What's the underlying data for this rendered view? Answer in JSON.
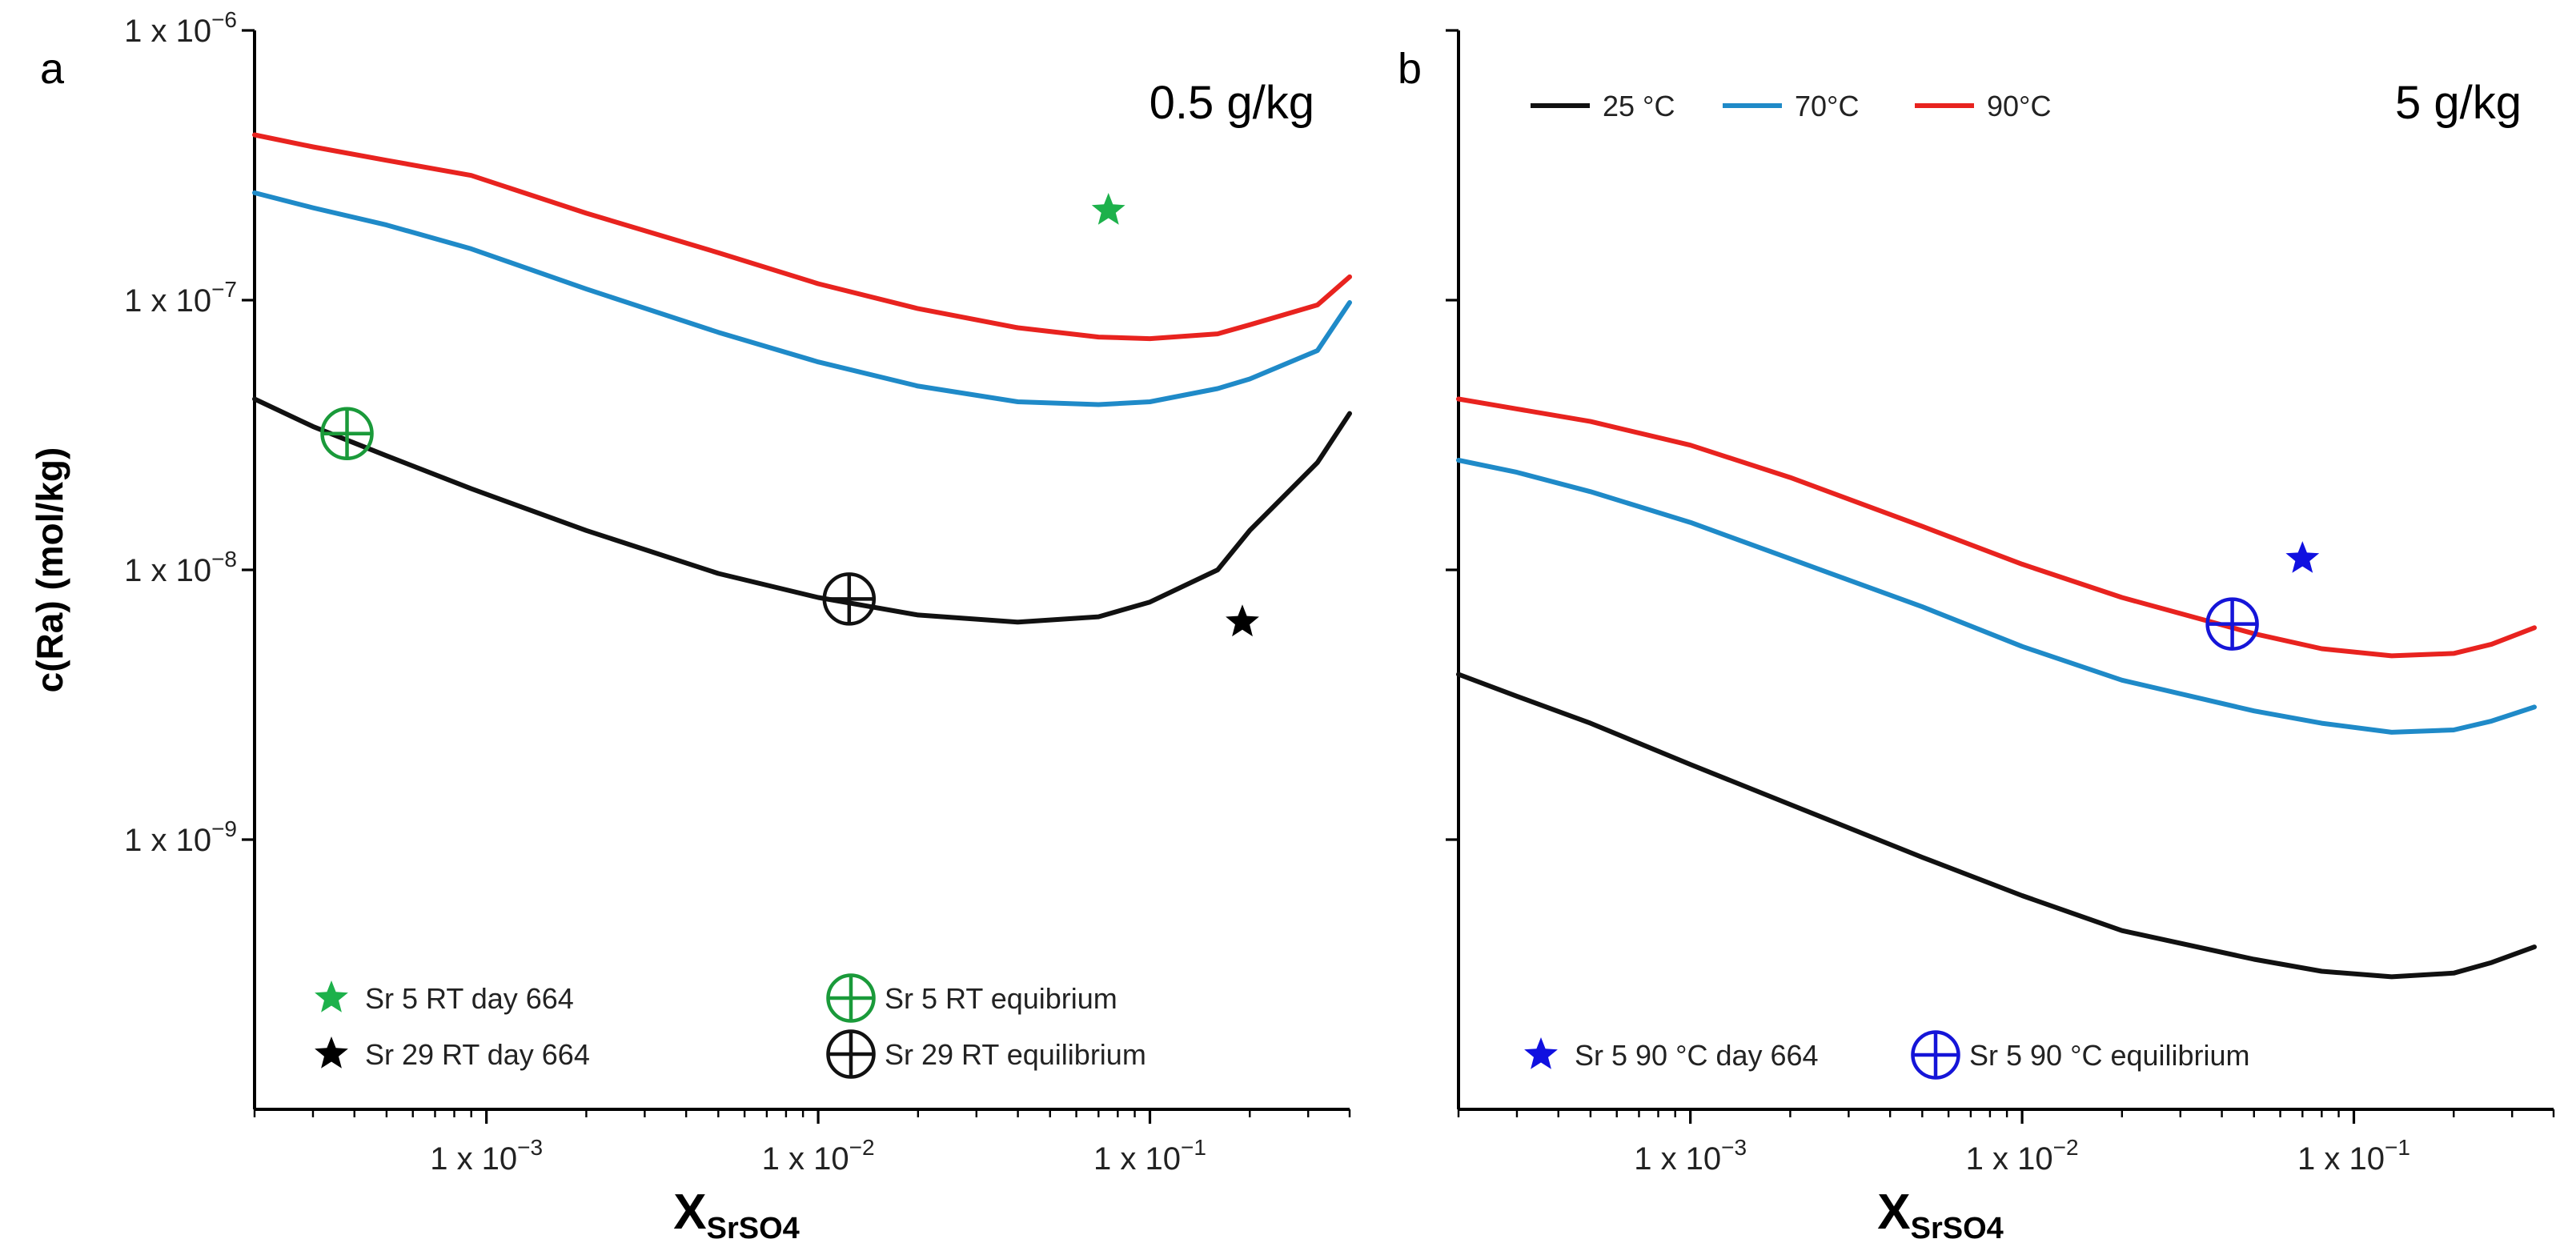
{
  "chart_data": [
    {
      "panel": "a",
      "type": "line",
      "annotation": "0.5 g/kg",
      "xscale": "log",
      "yscale": "log",
      "xlim": [
        0.0002,
        0.4
      ],
      "ylim": [
        1e-10,
        1e-06
      ],
      "xlabel_main": "X",
      "xlabel_sub": "SrSO4",
      "ylabel": "c(Ra) (mol/kg)",
      "x_ticks": [
        {
          "value": 0.001,
          "base": "1 x 10",
          "exp": "−3"
        },
        {
          "value": 0.01,
          "base": "1 x 10",
          "exp": "−2"
        },
        {
          "value": 0.1,
          "base": "1 x 10",
          "exp": "−1"
        }
      ],
      "y_ticks": [
        {
          "value": 1e-06,
          "base": "1 x 10",
          "exp": "−6"
        },
        {
          "value": 1e-07,
          "base": "1 x 10",
          "exp": "−7"
        },
        {
          "value": 1e-08,
          "base": "1 x 10",
          "exp": "−8"
        },
        {
          "value": 1e-09,
          "base": "1 x 10",
          "exp": "−9"
        }
      ],
      "series": [
        {
          "name": "90°C",
          "color": "#e8231f",
          "x": [
            0.0002,
            0.0003,
            0.0005,
            0.0009,
            0.002,
            0.005,
            0.01,
            0.02,
            0.04,
            0.07,
            0.1,
            0.16,
            0.2,
            0.32,
            0.4
          ],
          "y": [
            4.1e-07,
            3.7e-07,
            3.3e-07,
            2.9e-07,
            2.1e-07,
            1.5e-07,
            1.15e-07,
            9.3e-08,
            7.9e-08,
            7.3e-08,
            7.2e-08,
            7.5e-08,
            8.1e-08,
            9.6e-08,
            1.22e-07
          ]
        },
        {
          "name": "70°C",
          "color": "#1f8ac8",
          "x": [
            0.0002,
            0.0003,
            0.0005,
            0.0009,
            0.002,
            0.005,
            0.01,
            0.02,
            0.04,
            0.07,
            0.1,
            0.16,
            0.2,
            0.32,
            0.4
          ],
          "y": [
            2.5e-07,
            2.2e-07,
            1.9e-07,
            1.55e-07,
            1.1e-07,
            7.6e-08,
            5.9e-08,
            4.8e-08,
            4.2e-08,
            4.1e-08,
            4.2e-08,
            4.7e-08,
            5.1e-08,
            6.5e-08,
            9.8e-08
          ]
        },
        {
          "name": "25 °C",
          "color": "#111111",
          "x": [
            0.0002,
            0.0003,
            0.0005,
            0.0009,
            0.002,
            0.005,
            0.01,
            0.02,
            0.04,
            0.07,
            0.1,
            0.16,
            0.2,
            0.32,
            0.4
          ],
          "y": [
            4.3e-08,
            3.4e-08,
            2.65e-08,
            2e-08,
            1.4e-08,
            9.7e-09,
            7.9e-09,
            6.8e-09,
            6.4e-09,
            6.7e-09,
            7.6e-09,
            1e-08,
            1.4e-08,
            2.5e-08,
            3.8e-08
          ]
        }
      ],
      "points": [
        {
          "label": "Sr 5 RT day 664",
          "marker": "star",
          "color": "#1db14b",
          "x": 0.075,
          "y": 2.15e-07
        },
        {
          "label": "Sr 29 RT day 664",
          "marker": "star",
          "color": "#000000",
          "x": 0.19,
          "y": 6.4e-09
        },
        {
          "label": "Sr 5 RT equibrium",
          "marker": "circle-plus",
          "color": "#1a9a3a",
          "x": 0.00038,
          "y": 3.2e-08
        },
        {
          "label": "Sr 29 RT equilibrium",
          "marker": "circle-plus",
          "color": "#111111",
          "x": 0.0124,
          "y": 7.8e-09
        }
      ],
      "legend": [
        {
          "label": "Sr 5 RT day 664",
          "marker": "star",
          "color": "#1db14b"
        },
        {
          "label": "Sr 29 RT day 664",
          "marker": "star",
          "color": "#000000"
        },
        {
          "label": "Sr 5 RT equibrium",
          "marker": "circle-plus",
          "color": "#1a9a3a"
        },
        {
          "label": "Sr 29 RT equilibrium",
          "marker": "circle-plus",
          "color": "#111111"
        }
      ]
    },
    {
      "panel": "b",
      "type": "line",
      "annotation": "5 g/kg",
      "xscale": "log",
      "yscale": "log",
      "xlim": [
        0.0002,
        0.4
      ],
      "ylim": [
        1e-10,
        1e-06
      ],
      "xlabel_main": "X",
      "xlabel_sub": "SrSO4",
      "x_ticks": [
        {
          "value": 0.001,
          "base": "1 x 10",
          "exp": "−3"
        },
        {
          "value": 0.01,
          "base": "1 x 10",
          "exp": "−2"
        },
        {
          "value": 0.1,
          "base": "1 x 10",
          "exp": "−1"
        }
      ],
      "y_ticks": [
        {
          "value": 1e-06
        },
        {
          "value": 1e-07
        },
        {
          "value": 1e-08
        },
        {
          "value": 1e-09
        }
      ],
      "series": [
        {
          "name": "25 °C",
          "color": "#111111",
          "x": [
            0.0002,
            0.0003,
            0.0005,
            0.001,
            0.002,
            0.005,
            0.01,
            0.02,
            0.05,
            0.08,
            0.13,
            0.2,
            0.26,
            0.35
          ],
          "y": [
            4.1e-09,
            3.4e-09,
            2.7e-09,
            1.9e-09,
            1.35e-09,
            8.6e-10,
            6.2e-10,
            4.6e-10,
            3.6e-10,
            3.25e-10,
            3.1e-10,
            3.2e-10,
            3.5e-10,
            4e-10
          ]
        },
        {
          "name": "70°C",
          "color": "#1f8ac8",
          "x": [
            0.0002,
            0.0003,
            0.0005,
            0.001,
            0.002,
            0.005,
            0.01,
            0.02,
            0.05,
            0.08,
            0.13,
            0.2,
            0.26,
            0.35
          ],
          "y": [
            2.55e-08,
            2.3e-08,
            1.95e-08,
            1.5e-08,
            1.1e-08,
            7.3e-09,
            5.2e-09,
            3.9e-09,
            3e-09,
            2.7e-09,
            2.5e-09,
            2.55e-09,
            2.75e-09,
            3.1e-09
          ]
        },
        {
          "name": "90°C",
          "color": "#e8231f",
          "x": [
            0.0002,
            0.0003,
            0.0005,
            0.001,
            0.002,
            0.005,
            0.01,
            0.02,
            0.05,
            0.08,
            0.13,
            0.2,
            0.26,
            0.35
          ],
          "y": [
            4.3e-08,
            3.95e-08,
            3.55e-08,
            2.9e-08,
            2.2e-08,
            1.45e-08,
            1.05e-08,
            7.9e-09,
            5.8e-09,
            5.1e-09,
            4.8e-09,
            4.9e-09,
            5.3e-09,
            6.1e-09
          ]
        }
      ],
      "points": [
        {
          "label": "Sr 5 90 °C day 664",
          "marker": "star",
          "color": "#1010e0",
          "x": 0.07,
          "y": 1.1e-08
        },
        {
          "label": "Sr 5 90 °C equilibrium",
          "marker": "circle-plus",
          "color": "#1515d8",
          "x": 0.043,
          "y": 6.3e-09
        }
      ],
      "legend_top": [
        {
          "label": "25 °C",
          "color": "#111111"
        },
        {
          "label": "70°C",
          "color": "#1f8ac8"
        },
        {
          "label": "90°C",
          "color": "#e8231f"
        }
      ],
      "legend": [
        {
          "label": "Sr 5 90 °C day 664",
          "marker": "star",
          "color": "#1010e0"
        },
        {
          "label": "Sr 5 90 °C equilibrium",
          "marker": "circle-plus",
          "color": "#1515d8"
        }
      ]
    }
  ]
}
